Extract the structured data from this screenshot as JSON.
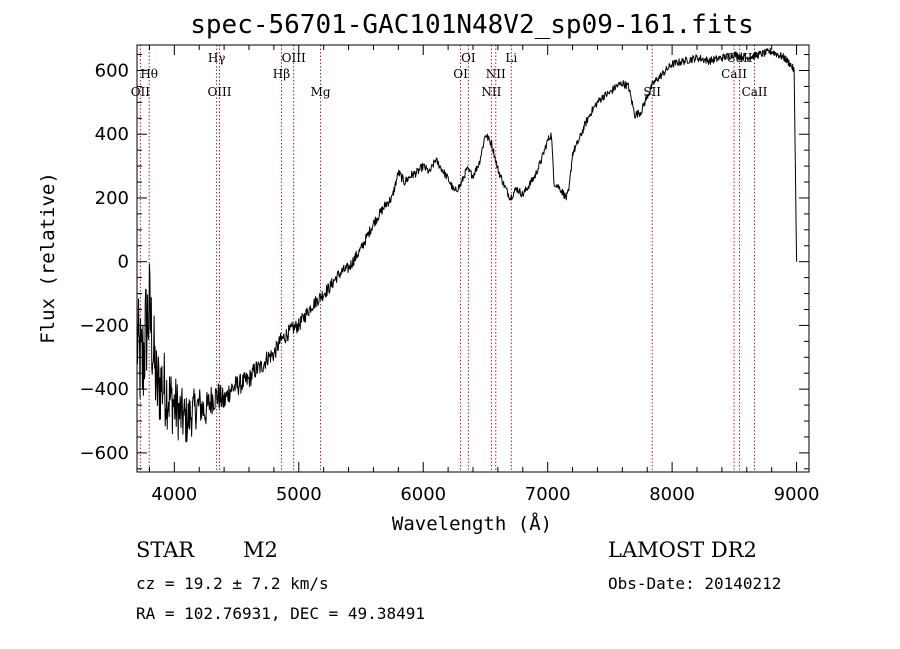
{
  "title": "spec-56701-GAC101N48V2_sp09-161.fits",
  "info": {
    "class": "STAR",
    "subclass": "M2",
    "survey": "LAMOST DR2",
    "cz": "cz = 19.2 ± 7.2 km/s",
    "obs_date": "Obs-Date: 20140212",
    "coords": "RA = 102.76931, DEC =  49.38491"
  },
  "chart_data": {
    "type": "line",
    "title": "spec-56701-GAC101N48V2_sp09-161.fits",
    "xlabel": "Wavelength (Å)",
    "ylabel": "Flux (relative)",
    "xlim": [
      3700,
      9100
    ],
    "ylim": [
      -660,
      680
    ],
    "xticks": [
      4000,
      5000,
      6000,
      7000,
      8000,
      9000
    ],
    "yticks": [
      -600,
      -400,
      -200,
      0,
      200,
      400,
      600
    ],
    "grid": false,
    "legend": "none",
    "line_color": "#000000",
    "marker_color": "#aa2222",
    "spectral_lines": [
      {
        "name": "OII",
        "wavelength": 3727,
        "row": 3
      },
      {
        "name": "Hθ",
        "wavelength": 3798,
        "row": 2
      },
      {
        "name": "Hγ",
        "wavelength": 4340,
        "row": 1
      },
      {
        "name": "OIII",
        "wavelength": 4363,
        "row": 3
      },
      {
        "name": "Hβ",
        "wavelength": 4861,
        "row": 2
      },
      {
        "name": "OIII",
        "wavelength": 4959,
        "row": 1
      },
      {
        "name": "Mg",
        "wavelength": 5175,
        "row": 3
      },
      {
        "name": "OI",
        "wavelength": 6300,
        "row": 2
      },
      {
        "name": "OI",
        "wavelength": 6363,
        "row": 1
      },
      {
        "name": "NII",
        "wavelength": 6548,
        "row": 3
      },
      {
        "name": "NII",
        "wavelength": 6583,
        "row": 2
      },
      {
        "name": "Li",
        "wavelength": 6708,
        "row": 1
      },
      {
        "name": "SII",
        "wavelength": 7840,
        "row": 3
      },
      {
        "name": "CaII",
        "wavelength": 8498,
        "row": 2
      },
      {
        "name": "CaII",
        "wavelength": 8542,
        "row": 1
      },
      {
        "name": "CaII",
        "wavelength": 8662,
        "row": 3
      }
    ],
    "series": [
      {
        "x": [
          3700,
          3740,
          3770,
          3800,
          3830,
          3860,
          3900,
          3950,
          4000,
          4050,
          4100,
          4150,
          4200,
          4250,
          4300,
          4350,
          4400,
          4450,
          4500,
          4550,
          4600,
          4650,
          4700,
          4750,
          4800,
          4850,
          4900,
          4950,
          5000,
          5050,
          5100,
          5150,
          5200,
          5250,
          5300,
          5350,
          5400,
          5450,
          5500,
          5550,
          5600,
          5650,
          5700,
          5750,
          5800,
          5850,
          5900,
          5950,
          6000,
          6050,
          6100,
          6150,
          6200,
          6250,
          6300,
          6350,
          6400,
          6450,
          6500,
          6550,
          6600,
          6650,
          6700,
          6750,
          6800,
          6850,
          6900,
          6950,
          7000,
          7030,
          7050,
          7100,
          7150,
          7170,
          7200,
          7250,
          7300,
          7350,
          7400,
          7450,
          7500,
          7550,
          7600,
          7650,
          7700,
          7750,
          7800,
          7850,
          7900,
          7950,
          8000,
          8100,
          8200,
          8300,
          8400,
          8500,
          8600,
          8700,
          8800,
          8850,
          8900,
          8950,
          8980,
          9000
        ],
        "y": [
          -250,
          -350,
          -220,
          -150,
          -280,
          -400,
          -380,
          -420,
          -450,
          -480,
          -500,
          -470,
          -450,
          -470,
          -430,
          -420,
          -440,
          -400,
          -390,
          -380,
          -370,
          -340,
          -330,
          -300,
          -290,
          -250,
          -230,
          -210,
          -200,
          -170,
          -140,
          -120,
          -100,
          -80,
          -50,
          -30,
          -20,
          10,
          40,
          80,
          120,
          150,
          180,
          200,
          280,
          250,
          270,
          280,
          300,
          280,
          320,
          290,
          260,
          220,
          240,
          290,
          270,
          310,
          400,
          370,
          290,
          240,
          200,
          230,
          210,
          240,
          270,
          320,
          380,
          400,
          250,
          230,
          200,
          220,
          340,
          380,
          430,
          470,
          500,
          520,
          530,
          550,
          560,
          550,
          460,
          470,
          520,
          560,
          580,
          600,
          620,
          630,
          640,
          630,
          640,
          650,
          640,
          650,
          660,
          650,
          640,
          620,
          600,
          0
        ],
        "noise": [
          150,
          200,
          180,
          170,
          150,
          140,
          130,
          110,
          100,
          90,
          80,
          70,
          60,
          55,
          50,
          45,
          40,
          35,
          35,
          30,
          30,
          30,
          28,
          26,
          25,
          25,
          24,
          22,
          22,
          22,
          20,
          20,
          20,
          20,
          18,
          18,
          18,
          18,
          16,
          16,
          16,
          15,
          15,
          14,
          14,
          14,
          14,
          13,
          13,
          12,
          12,
          12,
          12,
          12,
          12,
          12,
          12,
          12,
          12,
          12,
          12,
          12,
          12,
          12,
          12,
          12,
          12,
          12,
          12,
          12,
          12,
          12,
          12,
          12,
          12,
          12,
          12,
          12,
          12,
          12,
          12,
          12,
          12,
          12,
          12,
          12,
          12,
          12,
          12,
          12,
          12,
          12,
          12,
          12,
          12,
          12,
          12,
          12,
          12,
          12,
          12,
          12,
          12,
          12
        ]
      }
    ]
  }
}
